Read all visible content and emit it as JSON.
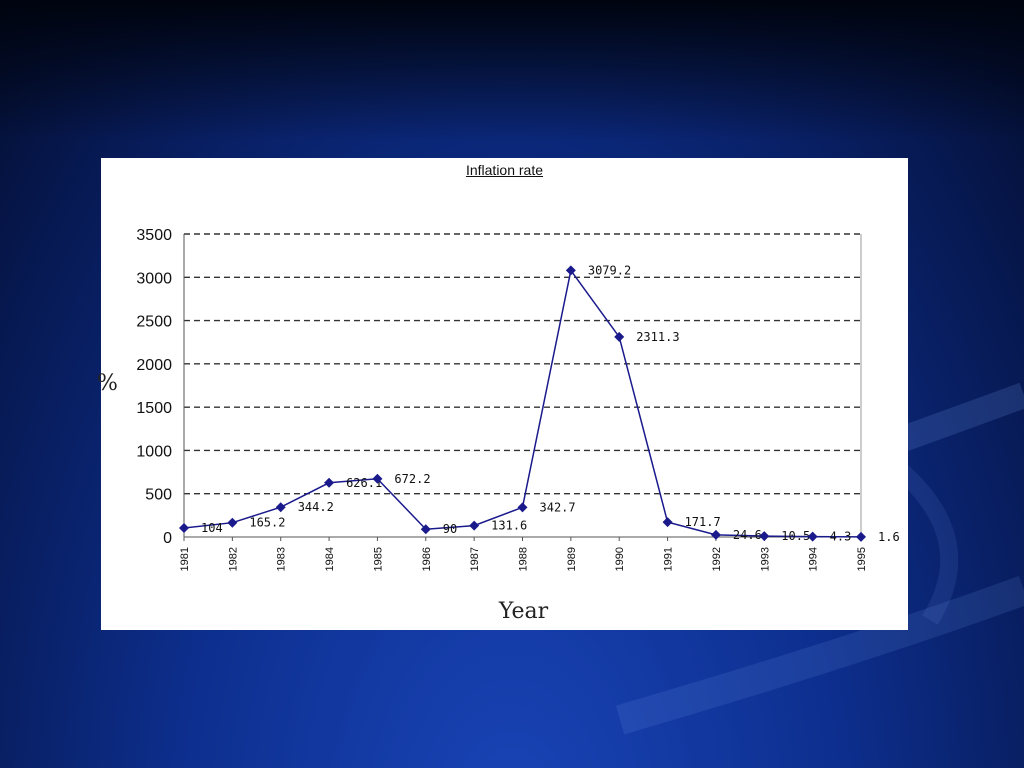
{
  "colors": {
    "series": "#1a1a8c",
    "grid": "#333333",
    "panel": "#ffffff"
  },
  "chart_data": {
    "type": "line",
    "title": "Inflation rate",
    "xlabel": "Year",
    "ylabel": "%",
    "categories": [
      "1981",
      "1982",
      "1983",
      "1984",
      "1985",
      "1986",
      "1987",
      "1988",
      "1989",
      "1990",
      "1991",
      "1992",
      "1993",
      "1994",
      "1995"
    ],
    "series": [
      {
        "values": [
          104,
          165.2,
          344.2,
          626.1,
          672.2,
          90,
          131.6,
          342.7,
          3079.2,
          2311.3,
          171.7,
          24.6,
          10.5,
          4.3,
          1.6
        ],
        "labels": [
          "104",
          "165.2",
          "344.2",
          "626.1",
          "672.2",
          "90",
          "131.6",
          "342.7",
          "3079.2",
          "2311.3",
          "171.7",
          "24.6",
          "10.5",
          "4.3",
          "1.6"
        ]
      }
    ],
    "ylim": [
      0,
      3500
    ],
    "yticks": [
      "0",
      "500",
      "1000",
      "1500",
      "2000",
      "2500",
      "3000",
      "3500"
    ],
    "grid": "dashed horizontal",
    "marker": "diamond"
  }
}
